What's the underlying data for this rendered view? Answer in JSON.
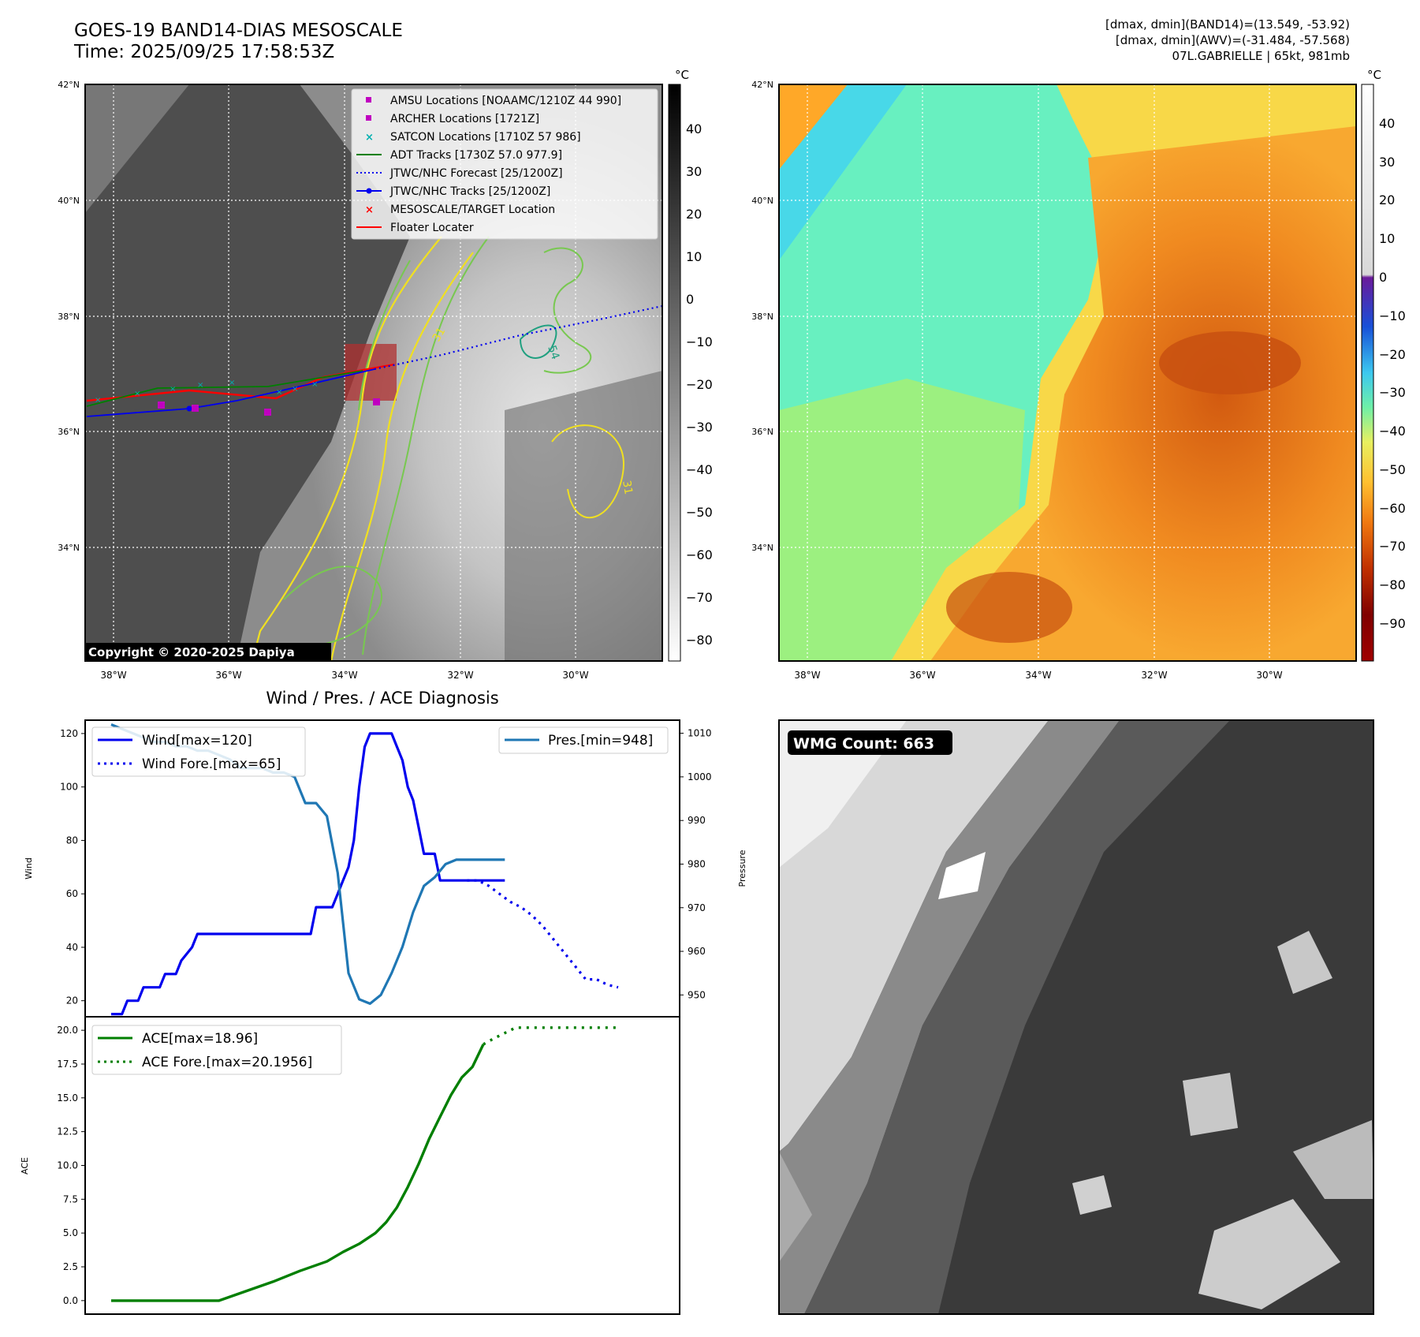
{
  "header": {
    "title_line1": "GOES-19 BAND14-DIAS MESOSCALE",
    "title_line2": "Time: 2025/09/25 17:58:53Z",
    "info_line1": "[dmax, dmin](BAND14)=(13.549, -53.92)",
    "info_line2": "[dmax, dmin](AWV)=(-31.484, -57.568)",
    "info_line3": "07L.GABRIELLE | 65kt, 981mb"
  },
  "colors": {
    "wind": "#0000ee",
    "pres": "#1f77b4",
    "ace": "#007f00",
    "amsu": "#c000c0",
    "satcon": "#00b0b0",
    "adt": "#007f00",
    "floater": "#ff0000"
  },
  "ir_map": {
    "lat_ticks": [
      "42°N",
      "40°N",
      "38°N",
      "36°N",
      "34°N"
    ],
    "lon_ticks": [
      "38°W",
      "36°W",
      "34°W",
      "32°W",
      "30°W"
    ],
    "colorbar_unit": "°C",
    "colorbar_ticks": [
      "40",
      "30",
      "20",
      "10",
      "0",
      "−10",
      "−20",
      "−30",
      "−40",
      "−50",
      "−60",
      "−70",
      "−80"
    ],
    "copyright": "Copyright © 2020-2025 Dapiya",
    "contour_labels": [
      "31",
      "54",
      "31"
    ],
    "legend": [
      {
        "label": "AMSU Locations [NOAAMC/1210Z 44 990]",
        "icon": "square-marker"
      },
      {
        "label": "ARCHER Locations [1721Z]",
        "icon": "square-marker"
      },
      {
        "label": "SATCON Locations [1710Z 57 986]",
        "icon": "x-marker"
      },
      {
        "label": "ADT Tracks [1730Z 57.0 977.9]",
        "icon": "line"
      },
      {
        "label": "JTWC/NHC Forecast [25/1200Z]",
        "icon": "dotted-line"
      },
      {
        "label": "JTWC/NHC Tracks [25/1200Z]",
        "icon": "line-dot"
      },
      {
        "label": "MESOSCALE/TARGET Location",
        "icon": "x-marker"
      },
      {
        "label": "Floater Locater",
        "icon": "line"
      }
    ]
  },
  "awv_map": {
    "lat_ticks": [
      "42°N",
      "40°N",
      "38°N",
      "36°N",
      "34°N"
    ],
    "lon_ticks": [
      "38°W",
      "36°W",
      "34°W",
      "32°W",
      "30°W"
    ],
    "colorbar_unit": "°C",
    "colorbar_ticks": [
      "40",
      "30",
      "20",
      "10",
      "0",
      "−10",
      "−20",
      "−30",
      "−40",
      "−50",
      "−60",
      "−70",
      "−80",
      "−90"
    ]
  },
  "wmg": {
    "count_label": "WMG Count: 663"
  },
  "chart_data": [
    {
      "type": "line",
      "title": "Wind / Pres. / ACE Diagnosis",
      "ylabel": "Wind",
      "y2label": "Pressure",
      "ylim": [
        14,
        125
      ],
      "y2lim": [
        945,
        1013
      ],
      "yticks": [
        20,
        40,
        60,
        80,
        100,
        120
      ],
      "y2ticks": [
        950,
        960,
        970,
        980,
        990,
        1000,
        1010
      ],
      "legend_left": [
        "Wind[max=120]",
        "Wind Fore.[max=65]"
      ],
      "legend_right": [
        "Pres.[min=948]"
      ],
      "xlim": [
        0,
        100
      ],
      "series": [
        {
          "name": "Wind",
          "style": "solid",
          "color": "#0000ee",
          "x": [
            0,
            2,
            3,
            5,
            6,
            7,
            9,
            10,
            11,
            12,
            13,
            15,
            16,
            17,
            18,
            19,
            20,
            21,
            22,
            23,
            24,
            25,
            26,
            27,
            28,
            29,
            30,
            31,
            32,
            33,
            34,
            35,
            36,
            37,
            38,
            39,
            40,
            41,
            42,
            43,
            44,
            45,
            46,
            47,
            48,
            49,
            50,
            51,
            52,
            53,
            54,
            55,
            56,
            57,
            58,
            59,
            60,
            61,
            62,
            63,
            64,
            65,
            66,
            67,
            68,
            69,
            70,
            71,
            72,
            73
          ],
          "y": [
            15,
            15,
            20,
            20,
            25,
            25,
            25,
            30,
            30,
            30,
            35,
            40,
            45,
            45,
            45,
            45,
            45,
            45,
            45,
            45,
            45,
            45,
            45,
            45,
            45,
            45,
            45,
            45,
            45,
            45,
            45,
            45,
            45,
            45,
            55,
            55,
            55,
            55,
            60,
            65,
            70,
            80,
            100,
            115,
            120,
            120,
            120,
            120,
            120,
            115,
            110,
            100,
            95,
            85,
            75,
            75,
            75,
            65,
            65,
            65,
            65,
            65,
            65,
            65,
            65,
            65,
            65,
            65,
            65,
            65
          ]
        },
        {
          "name": "Wind Fore.",
          "style": "dotted",
          "color": "#0000ee",
          "x": [
            66,
            68,
            70,
            72,
            74,
            76,
            78,
            80,
            82,
            84,
            86,
            88,
            90,
            92,
            94
          ],
          "y": [
            65,
            65,
            63,
            60,
            57,
            55,
            52,
            48,
            43,
            38,
            33,
            28,
            28,
            26,
            25
          ]
        },
        {
          "name": "Pres.",
          "style": "solid",
          "color": "#1f77b4",
          "x": [
            0,
            2,
            4,
            6,
            8,
            10,
            12,
            14,
            16,
            18,
            20,
            22,
            24,
            26,
            28,
            30,
            32,
            34,
            36,
            38,
            40,
            42,
            44,
            46,
            48,
            50,
            52,
            54,
            56,
            58,
            60,
            62,
            64,
            66,
            68,
            70,
            71,
            72,
            73
          ],
          "y": [
            1012,
            1011,
            1010,
            1009,
            1008,
            1008,
            1007,
            1007,
            1006,
            1006,
            1005,
            1004,
            1002,
            1002,
            1002,
            1001,
            1001,
            1000,
            994,
            994,
            991,
            978,
            955,
            949,
            948,
            950,
            955,
            961,
            969,
            975,
            977,
            980,
            981,
            981,
            981,
            981,
            981,
            981,
            981
          ]
        }
      ]
    },
    {
      "type": "line",
      "ylabel": "ACE",
      "ylim": [
        -1,
        21
      ],
      "yticks": [
        0.0,
        2.5,
        5.0,
        7.5,
        10.0,
        12.5,
        15.0,
        17.5,
        20.0
      ],
      "ytick_labels": [
        "0.0",
        "2.5",
        "5.0",
        "7.5",
        "10.0",
        "12.5",
        "15.0",
        "17.5",
        "20.0"
      ],
      "legend": [
        "ACE[max=18.96]",
        "ACE Fore.[max=20.1956]"
      ],
      "xlim": [
        0,
        100
      ],
      "series": [
        {
          "name": "ACE",
          "style": "solid",
          "color": "#007f00",
          "x": [
            0,
            5,
            10,
            15,
            20,
            25,
            30,
            35,
            40,
            43,
            46,
            49,
            51,
            53,
            55,
            57,
            59,
            61,
            63,
            65,
            67,
            69
          ],
          "y": [
            0,
            0,
            0,
            0,
            0,
            0.7,
            1.4,
            2.2,
            2.9,
            3.6,
            4.2,
            5.0,
            5.8,
            6.9,
            8.4,
            10.1,
            12.0,
            13.6,
            15.2,
            16.5,
            17.3,
            18.96
          ]
        },
        {
          "name": "ACE Fore.",
          "style": "dotted",
          "color": "#007f00",
          "x": [
            69,
            71,
            73,
            75,
            80,
            85,
            90,
            94
          ],
          "y": [
            18.96,
            19.4,
            19.8,
            20.1956,
            20.1956,
            20.1956,
            20.1956,
            20.1956
          ]
        }
      ]
    }
  ]
}
